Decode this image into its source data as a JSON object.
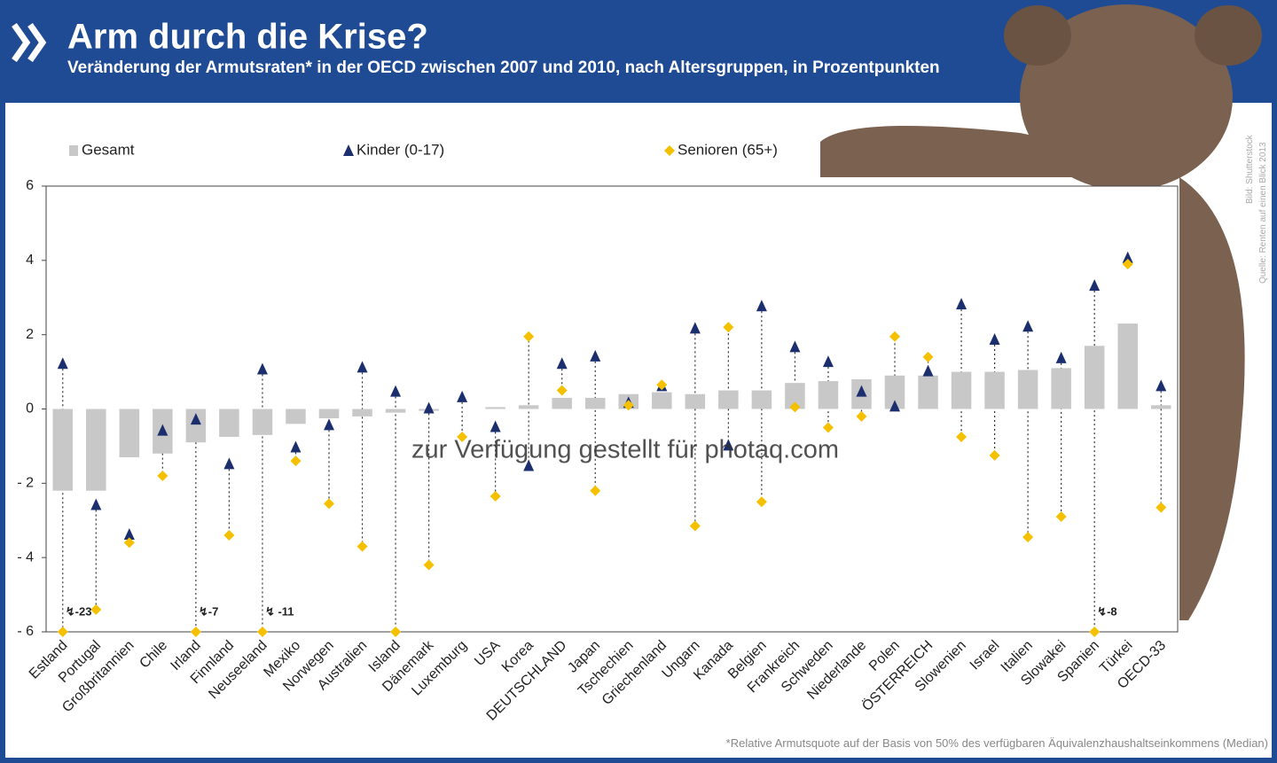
{
  "chart_data": {
    "type": "bar",
    "title": "Arm durch die Krise?",
    "subtitle": "Veränderung der Armutsraten* in der OECD zwischen 2007 und 2010, nach Altersgruppen, in Prozentpunkten",
    "footnote": "*Relative Armutsquote auf der Basis von 50% des verfügbaren Äquivalenzhaushaltseinkommens (Median)",
    "source_image": "Bild: Shutterstock",
    "source_data": "Quelle: Renten auf einen Blick 2013",
    "watermark": "zur Verfügung gestellt für photaq.com",
    "categories": [
      "Estland",
      "Portugal",
      "Großbritannien",
      "Chile",
      "Irland",
      "Finnland",
      "Neuseeland",
      "Mexiko",
      "Norwegen",
      "Australien",
      "Island",
      "Dänemark",
      "Luxemburg",
      "USA",
      "Korea",
      "DEUTSCHLAND",
      "Japan",
      "Tschechien",
      "Griechenland",
      "Ungarn",
      "Kanada",
      "Belgien",
      "Frankreich",
      "Schweden",
      "Niederlande",
      "Polen",
      "ÖSTERREICH",
      "Slowenien",
      "Israel",
      "Italien",
      "Slowakei",
      "Spanien",
      "Türkei",
      "OECD-33"
    ],
    "series": [
      {
        "name": "Gesamt",
        "color": "#c8c8c8",
        "marker": "bar",
        "values": [
          -2.2,
          -2.2,
          -1.3,
          -1.2,
          -0.9,
          -0.75,
          -0.7,
          -0.4,
          -0.25,
          -0.2,
          -0.1,
          -0.05,
          0,
          0.05,
          0.1,
          0.3,
          0.3,
          0.4,
          0.45,
          0.4,
          0.5,
          0.5,
          0.7,
          0.75,
          0.8,
          0.9,
          0.9,
          1.0,
          1.0,
          1.05,
          1.1,
          1.7,
          2.3,
          0.1
        ]
      },
      {
        "name": "Kinder (0-17)",
        "color": "#1b2f6e",
        "marker": "triangle",
        "values": [
          1.2,
          -2.6,
          -3.4,
          -0.6,
          -0.3,
          -1.5,
          1.05,
          -1.05,
          -0.45,
          1.1,
          0.45,
          0,
          0.3,
          -0.5,
          -1.55,
          1.2,
          1.4,
          0.15,
          0.6,
          2.15,
          -1.0,
          2.75,
          1.65,
          1.25,
          0.45,
          0.05,
          1.0,
          2.8,
          1.85,
          2.2,
          1.35,
          3.3,
          4.05,
          0.6
        ]
      },
      {
        "name": "Senioren (65+)",
        "color": "#f5c000",
        "marker": "diamond",
        "values": [
          -6,
          -5.4,
          -3.6,
          -1.8,
          -6,
          -3.4,
          -6,
          -1.4,
          -2.55,
          -3.7,
          -6,
          -4.2,
          -0.75,
          -2.35,
          1.95,
          0.5,
          -2.2,
          0.1,
          0.65,
          -3.15,
          2.2,
          -2.5,
          0.05,
          -0.5,
          -0.2,
          1.95,
          1.4,
          -0.75,
          -1.25,
          -3.45,
          -2.9,
          -6,
          3.9,
          -2.65
        ]
      }
    ],
    "annotations": [
      {
        "category": 0,
        "text": "↯-23"
      },
      {
        "category": 4,
        "text": "↯-7"
      },
      {
        "category": 6,
        "text": "↯ -11"
      },
      {
        "category": 31,
        "text": "↯-8"
      }
    ],
    "ylim": [
      -6,
      6
    ],
    "yticks": [
      {
        "value": -6,
        "label": "- 6"
      },
      {
        "value": -4,
        "label": "- 4"
      },
      {
        "value": -2,
        "label": "- 2"
      },
      0,
      2,
      4,
      6
    ]
  }
}
